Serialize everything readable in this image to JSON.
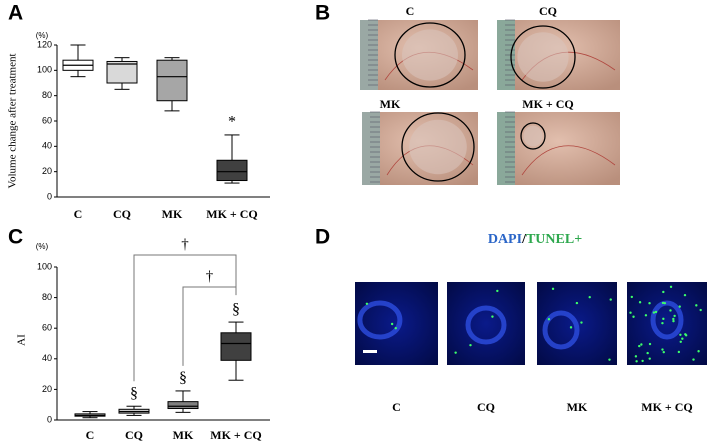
{
  "chart_data": [
    {
      "type": "box",
      "panel": "A",
      "y_unit": "(%)",
      "y_label": "Volume change after treatment",
      "categories": [
        "C",
        "CQ",
        "MK",
        "MK + CQ"
      ],
      "colors": [
        "#ffffff",
        "#d9d9d9",
        "#a6a6a6",
        "#404040"
      ],
      "boxes": [
        {
          "min": 95,
          "q1": 100,
          "median": 104,
          "q3": 108,
          "max": 120
        },
        {
          "min": 85,
          "q1": 90,
          "median": 105,
          "q3": 107,
          "max": 110
        },
        {
          "min": 68,
          "q1": 76,
          "median": 95,
          "q3": 108,
          "max": 110
        },
        {
          "min": 11,
          "q1": 13,
          "median": 20,
          "q3": 29,
          "max": 49
        }
      ],
      "ylim": [
        0,
        120
      ],
      "yticks": [
        0,
        20,
        40,
        60,
        80,
        100,
        120
      ],
      "annotations": [
        {
          "category": "MK + CQ",
          "text": "*"
        }
      ]
    },
    {
      "type": "box",
      "panel": "C",
      "y_unit": "(%)",
      "y_label": "AI",
      "categories": [
        "C",
        "CQ",
        "MK",
        "MK + CQ"
      ],
      "colors": [
        "#d9d9d9",
        "#c8c8c8",
        "#7f7f7f",
        "#404040"
      ],
      "boxes": [
        {
          "min": 1.5,
          "q1": 2.5,
          "median": 3,
          "q3": 4,
          "max": 5.5
        },
        {
          "min": 3,
          "q1": 4.5,
          "median": 5.5,
          "q3": 7,
          "max": 9
        },
        {
          "min": 5,
          "q1": 7.5,
          "median": 9,
          "q3": 12,
          "max": 19
        },
        {
          "min": 26,
          "q1": 39,
          "median": 50,
          "q3": 57,
          "max": 64
        }
      ],
      "ylim": [
        0,
        100
      ],
      "yticks": [
        0,
        20,
        40,
        60,
        80,
        100
      ],
      "annotations": [
        {
          "category": "CQ",
          "text": "§"
        },
        {
          "category": "MK",
          "text": "§"
        },
        {
          "category": "MK + CQ",
          "text": "§"
        }
      ],
      "brackets": [
        {
          "from": "CQ",
          "to": "MK + CQ",
          "text": "†"
        },
        {
          "from": "MK",
          "to": "MK + CQ",
          "text": "†"
        }
      ]
    }
  ],
  "panels": [
    {
      "letter": "B",
      "labels": [
        "C",
        "CQ",
        "MK",
        "MK + CQ"
      ]
    },
    {
      "letter": "D",
      "title": [
        "DAPI",
        "/",
        "TUNEL+"
      ],
      "labels": [
        "C",
        "CQ",
        "MK",
        "MK + CQ"
      ]
    }
  ]
}
